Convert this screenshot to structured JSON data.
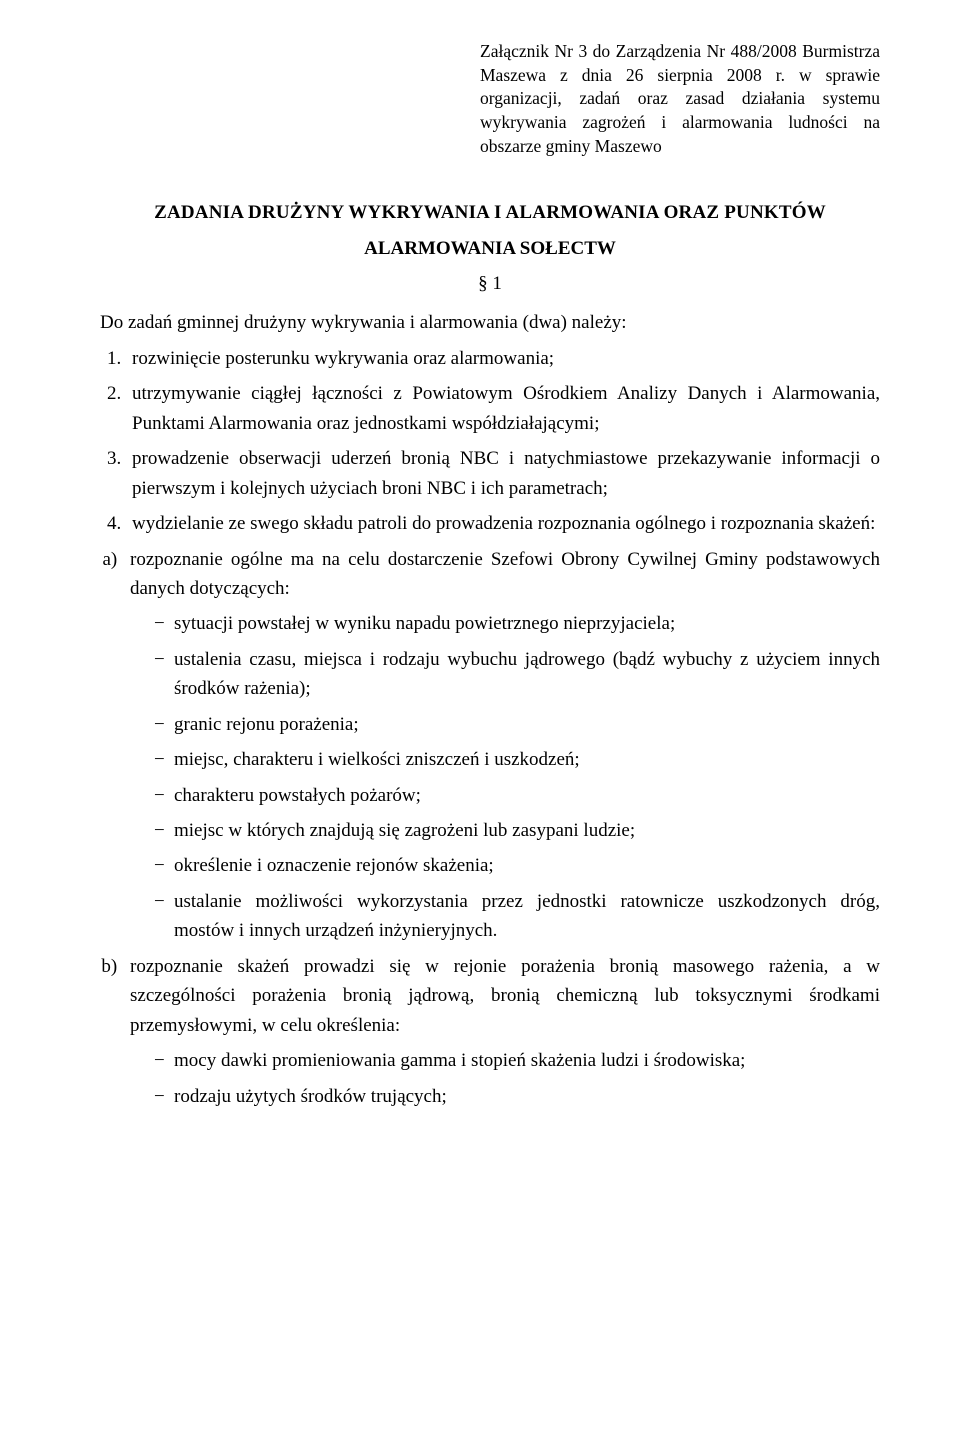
{
  "attachment": {
    "line1": "Załącznik Nr 3 do Zarządzenia Nr 488/2008 Burmistrza Maszewa z dnia 26 sierpnia 2008 r. w sprawie organizacji, zadań oraz zasad działania systemu wykrywania zagrożeń i alarmowania ludności na obszarze gminy Maszewo"
  },
  "title": "ZADANIA DRUŻYNY WYKRYWANIA I ALARMOWANIA ORAZ PUNKTÓW",
  "subtitle": "ALARMOWANIA SOŁECTW",
  "section_mark": "§ 1",
  "intro": "Do zadań gminnej drużyny wykrywania i alarmowania (dwa) należy:",
  "numbered": {
    "i1": "rozwinięcie posterunku wykrywania oraz alarmowania;",
    "i2": "utrzymywanie ciągłej łączności z Powiatowym Ośrodkiem Analizy Danych i Alarmowania, Punktami Alarmowania oraz jednostkami współdziałającymi;",
    "i3": "prowadzenie obserwacji uderzeń bronią NBC i natychmiastowe przekazywanie informacji o pierwszym i kolejnych użyciach broni NBC i ich parametrach;",
    "i4": "wydzielanie ze swego składu patroli do prowadzenia rozpoznania ogólnego i rozpoznania skażeń:"
  },
  "lettered": {
    "a_intro": "rozpoznanie ogólne ma na celu dostarczenie Szefowi Obrony Cywilnej Gminy podstawowych danych dotyczących:",
    "a_items": {
      "d1": "sytuacji powstałej w wyniku napadu powietrznego nieprzyjaciela;",
      "d2": "ustalenia czasu, miejsca i rodzaju wybuchu jądrowego (bądź wybuchy z użyciem innych środków rażenia);",
      "d3": "granic rejonu porażenia;",
      "d4": "miejsc, charakteru i wielkości zniszczeń i uszkodzeń;",
      "d5": "charakteru powstałych pożarów;",
      "d6": "miejsc w których znajdują się zagrożeni lub zasypani ludzie;",
      "d7": "określenie i oznaczenie rejonów skażenia;",
      "d8": "ustalanie możliwości wykorzystania przez jednostki ratownicze uszkodzonych dróg, mostów i innych urządzeń inżynieryjnych."
    },
    "b_intro": "rozpoznanie skażeń prowadzi się w rejonie porażenia bronią masowego rażenia, a w szczególności porażenia bronią jądrową, bronią chemiczną lub toksycznymi środkami przemysłowymi, w celu określenia:",
    "b_items": {
      "d1": "mocy dawki promieniowania gamma i stopień skażenia ludzi i środowiska;",
      "d2": "rodzaju użytych środków trujących;"
    }
  }
}
